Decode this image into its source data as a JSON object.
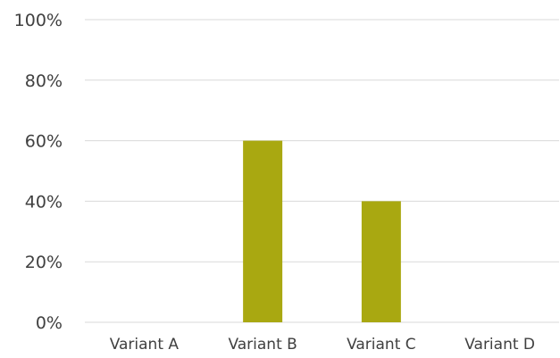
{
  "chart_data": {
    "type": "bar",
    "categories": [
      "Variant A",
      "Variant B",
      "Variant C",
      "Variant D"
    ],
    "values": [
      0,
      60,
      40,
      0
    ],
    "ylim": [
      0,
      100
    ],
    "yticks": [
      0,
      20,
      40,
      60,
      80,
      100
    ],
    "ytick_labels": [
      "0%",
      "20%",
      "40%",
      "60%",
      "80%",
      "100%"
    ],
    "grid": true,
    "legend": "none",
    "bar_color": "#a9a811",
    "grid_color": "#d9d9d9",
    "text_color": "#404040"
  }
}
